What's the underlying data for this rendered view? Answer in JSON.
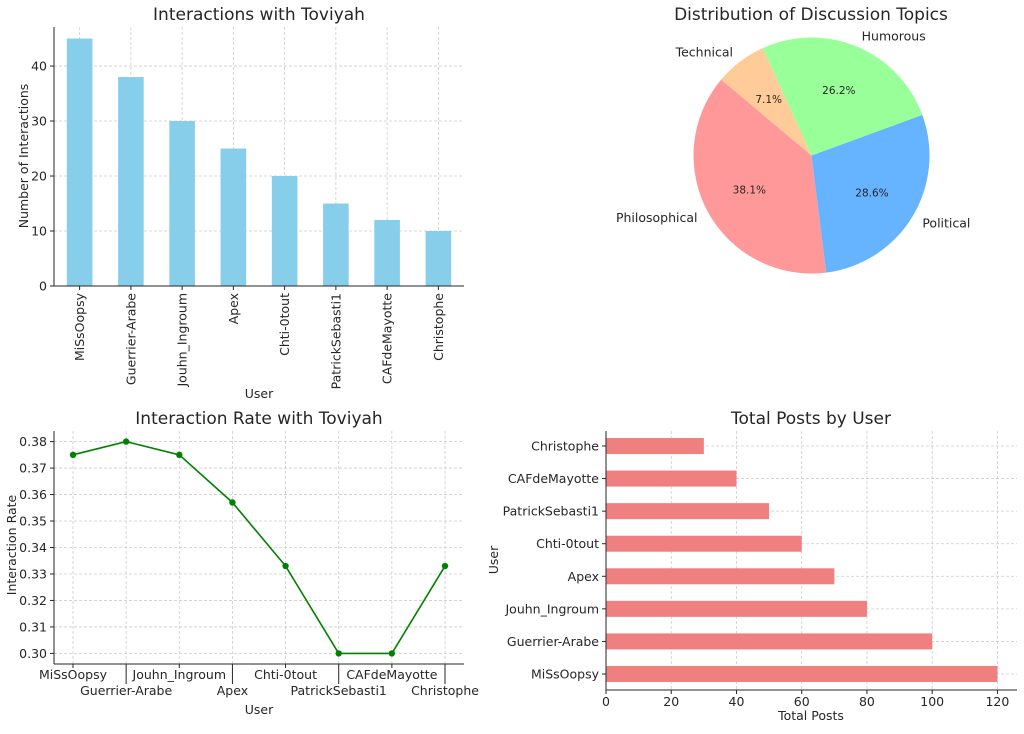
{
  "chart_data": [
    {
      "type": "bar",
      "title": "Interactions with Toviyah",
      "xlabel": "User",
      "ylabel": "Number of Interactions",
      "categories": [
        "MiSsOopsy",
        "Guerrier-Arabe",
        "Jouhn_Ingroum",
        "Apex",
        "Chti-0tout",
        "PatrickSebasti1",
        "CAFdeMayotte",
        "Christophe"
      ],
      "values": [
        45,
        38,
        30,
        25,
        20,
        15,
        12,
        10
      ],
      "yticks": [
        0,
        10,
        20,
        30,
        40
      ],
      "ylim": [
        0,
        47.1
      ],
      "grid": true,
      "color": "#87ceeb"
    },
    {
      "type": "pie",
      "title": "Distribution of Discussion Topics",
      "labels": [
        "Philosophical",
        "Political",
        "Humorous",
        "Technical"
      ],
      "values": [
        38.1,
        28.6,
        26.2,
        7.1
      ],
      "pct_labels": [
        "38.1%",
        "28.6%",
        "26.2%",
        "7.1%"
      ],
      "colors": [
        "#ff9999",
        "#66b3ff",
        "#99ff99",
        "#ffcc99"
      ],
      "start_angle": 140
    },
    {
      "type": "line",
      "title": "Interaction Rate with Toviyah",
      "xlabel": "User",
      "ylabel": "Interaction Rate",
      "categories": [
        "MiSsOopsy",
        "Guerrier-Arabe",
        "Jouhn_Ingroum",
        "Apex",
        "Chti-0tout",
        "PatrickSebasti1",
        "CAFdeMayotte",
        "Christophe"
      ],
      "values": [
        0.375,
        0.38,
        0.375,
        0.357,
        0.333,
        0.3,
        0.3,
        0.333
      ],
      "yticks": [
        "0.30",
        "0.31",
        "0.32",
        "0.33",
        "0.34",
        "0.35",
        "0.36",
        "0.37",
        "0.38"
      ],
      "ylim": [
        0.296,
        0.384
      ],
      "grid": true,
      "color": "#008000"
    },
    {
      "type": "bar",
      "orientation": "horizontal",
      "title": "Total Posts by User",
      "xlabel": "Total Posts",
      "ylabel": "User",
      "categories": [
        "MiSsOopsy",
        "Guerrier-Arabe",
        "Jouhn_Ingroum",
        "Apex",
        "Chti-0tout",
        "PatrickSebasti1",
        "CAFdeMayotte",
        "Christophe"
      ],
      "values": [
        120,
        100,
        80,
        70,
        60,
        50,
        40,
        30
      ],
      "xticks": [
        0,
        20,
        40,
        60,
        80,
        100,
        120
      ],
      "xlim": [
        0,
        126
      ],
      "grid": true,
      "color": "#f08080"
    }
  ]
}
